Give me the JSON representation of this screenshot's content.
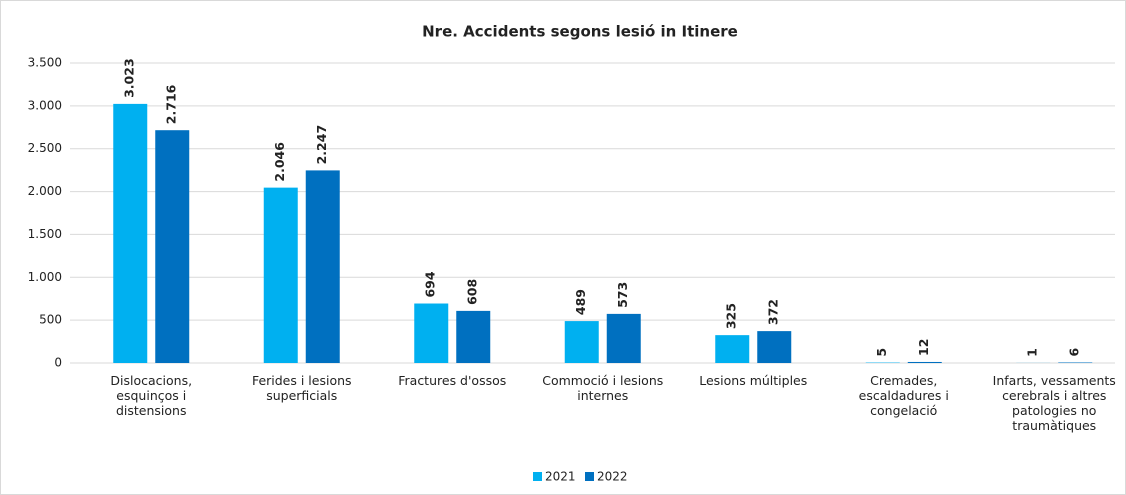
{
  "chart_data": {
    "type": "bar",
    "title": "Nre. Accidents segons lesió in Itinere",
    "categories": [
      "Dislocacions, esquinços i distensions",
      "Ferides i lesions superficials",
      "Fractures d'ossos",
      "Commoció i lesions internes",
      "Lesions múltiples",
      "Cremades, escaldadures i congelació",
      "Infarts, vessaments cerebrals i altres patologies no traumàtiques"
    ],
    "series": [
      {
        "name": "2021",
        "color": "#00b0f0",
        "values": [
          3023,
          2046,
          694,
          489,
          325,
          5,
          1
        ],
        "value_labels": [
          "3.023",
          "2.046",
          "694",
          "489",
          "325",
          "5",
          "1"
        ]
      },
      {
        "name": "2022",
        "color": "#0070c0",
        "values": [
          2716,
          2247,
          608,
          573,
          372,
          12,
          6
        ],
        "value_labels": [
          "2.716",
          "2.247",
          "608",
          "573",
          "372",
          "12",
          "6"
        ]
      }
    ],
    "ylim": [
      0,
      3500
    ],
    "yticks": [
      0,
      500,
      {
        "value": 1000,
        "label": "1.000"
      },
      {
        "value": 1500,
        "label": "1.500"
      },
      {
        "value": 2000,
        "label": "2.000"
      },
      {
        "value": 2500,
        "label": "2.500"
      },
      {
        "value": 3000,
        "label": "3.000"
      },
      {
        "value": 3500,
        "label": "3.500"
      }
    ],
    "grid": true,
    "legend": "bottom"
  }
}
